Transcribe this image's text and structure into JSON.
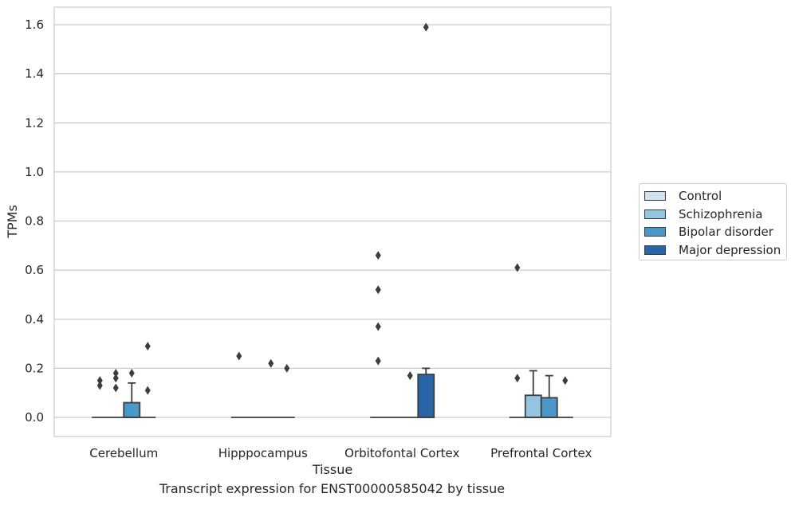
{
  "chart_data": {
    "type": "box",
    "xlabel": "Tissue",
    "ylabel": "TPMs",
    "ylim": [
      -0.08,
      1.67
    ],
    "yticks": [
      0.0,
      0.2,
      0.4,
      0.6,
      0.8,
      1.0,
      1.2,
      1.4,
      1.6
    ],
    "ytick_labels": [
      "0.0",
      "0.2",
      "0.4",
      "0.6",
      "0.8",
      "1.0",
      "1.2",
      "1.4",
      "1.6"
    ],
    "grid": true,
    "legend_position": "right",
    "categories": [
      "Cerebellum",
      "Hipppocampus",
      "Orbitofontal Cortex",
      "Prefrontal Cortex"
    ],
    "series": [
      {
        "name": "Control",
        "color": "#d0e1f2",
        "boxes": [
          {
            "q1": 0,
            "median": 0,
            "q3": 0,
            "whisker_low": 0,
            "whisker_high": 0,
            "outliers": [
              0.13,
              0.15
            ]
          },
          {
            "q1": 0,
            "median": 0,
            "q3": 0,
            "whisker_low": 0,
            "whisker_high": 0,
            "outliers": [
              0.25
            ]
          },
          {
            "q1": 0,
            "median": 0,
            "q3": 0,
            "whisker_low": 0,
            "whisker_high": 0,
            "outliers": [
              0.23,
              0.37,
              0.52,
              0.66
            ]
          },
          {
            "q1": 0,
            "median": 0,
            "q3": 0,
            "whisker_low": 0,
            "whisker_high": 0,
            "outliers": [
              0.16,
              0.61
            ]
          }
        ]
      },
      {
        "name": "Schizophrenia",
        "color": "#94c4df",
        "boxes": [
          {
            "q1": 0,
            "median": 0,
            "q3": 0,
            "whisker_low": 0,
            "whisker_high": 0,
            "outliers": [
              0.12,
              0.16,
              0.18
            ]
          },
          {
            "q1": 0,
            "median": 0,
            "q3": 0,
            "whisker_low": 0,
            "whisker_high": 0,
            "outliers": []
          },
          {
            "q1": 0,
            "median": 0,
            "q3": 0,
            "whisker_low": 0,
            "whisker_high": 0,
            "outliers": []
          },
          {
            "q1": 0,
            "median": 0,
            "q3": 0.09,
            "whisker_low": 0,
            "whisker_high": 0.19,
            "outliers": []
          }
        ]
      },
      {
        "name": "Bipolar disorder",
        "color": "#4a98c9",
        "boxes": [
          {
            "q1": 0,
            "median": 0,
            "q3": 0.06,
            "whisker_low": 0,
            "whisker_high": 0.14,
            "outliers": [
              0.18
            ]
          },
          {
            "q1": 0,
            "median": 0,
            "q3": 0,
            "whisker_low": 0,
            "whisker_high": 0,
            "outliers": [
              0.22
            ]
          },
          {
            "q1": 0,
            "median": 0,
            "q3": 0,
            "whisker_low": 0,
            "whisker_high": 0,
            "outliers": [
              0.17
            ]
          },
          {
            "q1": 0,
            "median": 0,
            "q3": 0.08,
            "whisker_low": 0,
            "whisker_high": 0.17,
            "outliers": []
          }
        ]
      },
      {
        "name": "Major depression",
        "color": "#2865a8",
        "boxes": [
          {
            "q1": 0,
            "median": 0,
            "q3": 0,
            "whisker_low": 0,
            "whisker_high": 0,
            "outliers": [
              0.11,
              0.29
            ]
          },
          {
            "q1": 0,
            "median": 0,
            "q3": 0,
            "whisker_low": 0,
            "whisker_high": 0,
            "outliers": [
              0.2
            ]
          },
          {
            "q1": 0,
            "median": 0,
            "q3": 0.175,
            "whisker_low": 0,
            "whisker_high": 0.2,
            "outliers": [
              1.59
            ]
          },
          {
            "q1": 0,
            "median": 0,
            "q3": 0,
            "whisker_low": 0,
            "whisker_high": 0,
            "outliers": [
              0.15
            ]
          }
        ]
      }
    ],
    "caption": "Transcript expression for ENST00000585042 by tissue"
  }
}
